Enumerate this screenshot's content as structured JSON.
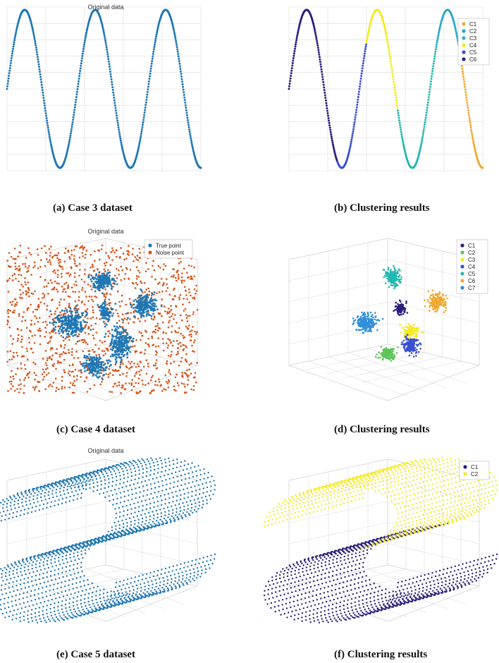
{
  "colors": {
    "blue": "#1f77b4",
    "orange": "#d95319",
    "c_navy": "#2a1f7a",
    "c_blue": "#3a4fd6",
    "c_teal": "#23b8b0",
    "c_green": "#5fc45a",
    "c_yellow": "#f5ea20",
    "c_orange": "#f0a830",
    "c_sky": "#2f8fd8",
    "c_cyan": "#2aa8c8"
  },
  "panels": {
    "a": {
      "caption": "(a) Case 3 dataset",
      "title": "Original data"
    },
    "b": {
      "caption": "(b) Clustering results",
      "legend": [
        "C1",
        "C2",
        "C3",
        "C4",
        "C5",
        "C6"
      ]
    },
    "c": {
      "caption": "(c) Case 4 dataset",
      "title": "Original data",
      "legend": [
        "True point",
        "Noise point"
      ]
    },
    "d": {
      "caption": "(d) Clustering results",
      "legend": [
        "C1",
        "C2",
        "C3",
        "C4",
        "C5",
        "C6",
        "C7"
      ]
    },
    "e": {
      "caption": "(e) Case 5 dataset",
      "title": "Original data"
    },
    "f": {
      "caption": "(f) Clustering results",
      "legend": [
        "C1",
        "C2"
      ]
    }
  },
  "chart_data": [
    {
      "type": "line",
      "title": "Original data",
      "x_range": [
        0,
        5.5
      ],
      "y_range": [
        -1,
        1
      ],
      "function": "y = sin(2*pi*x/1.9 ...)",
      "periods": 2.75,
      "series": [
        {
          "values_summary": "single sinusoid, 3 peaks, 3 troughs"
        }
      ]
    },
    {
      "type": "line",
      "series": [
        {
          "name": "C1",
          "color": "#f0a830"
        },
        {
          "name": "C2",
          "color": "#2aa8c8"
        },
        {
          "name": "C3",
          "color": "#23b8b0"
        },
        {
          "name": "C4",
          "color": "#f5ea20"
        },
        {
          "name": "C5",
          "color": "#3a4fd6"
        },
        {
          "name": "C6",
          "color": "#2a1f7a"
        }
      ]
    },
    {
      "type": "scatter",
      "title": "Original data",
      "series": [
        {
          "name": "True point",
          "clusters": 7
        },
        {
          "name": "Noise point"
        }
      ]
    },
    {
      "type": "scatter",
      "series": [
        {
          "name": "C1"
        },
        {
          "name": "C2"
        },
        {
          "name": "C3"
        },
        {
          "name": "C4"
        },
        {
          "name": "C5"
        },
        {
          "name": "C6"
        },
        {
          "name": "C7"
        }
      ]
    },
    {
      "type": "scatter",
      "title": "Original data",
      "series": [
        {
          "values_summary": "S-shaped curved surface point grid"
        }
      ]
    },
    {
      "type": "scatter",
      "series": [
        {
          "name": "C1"
        },
        {
          "name": "C2"
        }
      ]
    }
  ]
}
